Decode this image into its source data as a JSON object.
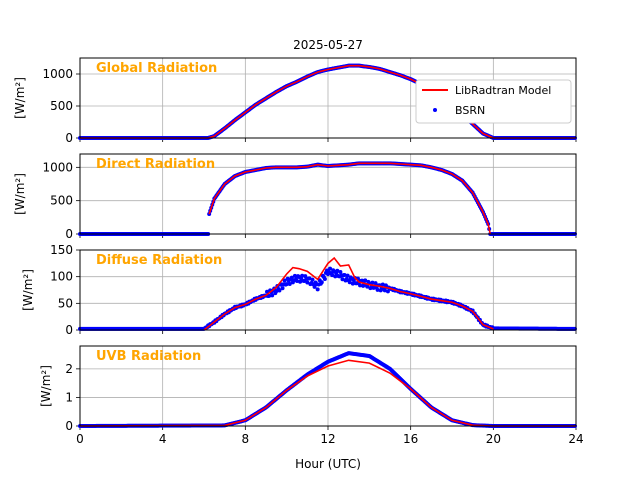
{
  "chart_data": {
    "type": "line",
    "title": "2025-05-27",
    "xlabel": "Hour (UTC)",
    "xlim": [
      0,
      24
    ],
    "xticks": [
      0,
      4,
      8,
      12,
      16,
      20,
      24
    ],
    "grid": true,
    "legend": {
      "placement": "top-right of first panel",
      "entries": [
        "LibRadtran Model",
        "BSRN"
      ]
    },
    "colors": {
      "model": "#ff0000",
      "bsrn": "#0000ff",
      "panel_title": "#ffa500"
    },
    "panels": [
      {
        "title": "Global Radiation",
        "ylabel": "[W/m²]",
        "ylim": [
          0,
          1250
        ],
        "yticks": [
          0,
          500,
          1000
        ],
        "series": [
          {
            "name": "LibRadtran Model",
            "points": [
              [
                0,
                0
              ],
              [
                6.2,
                0
              ],
              [
                6.5,
                30
              ],
              [
                7,
                150
              ],
              [
                7.5,
                280
              ],
              [
                8,
                400
              ],
              [
                8.5,
                520
              ],
              [
                9,
                620
              ],
              [
                9.5,
                720
              ],
              [
                10,
                810
              ],
              [
                10.5,
                880
              ],
              [
                11,
                960
              ],
              [
                11.5,
                1030
              ],
              [
                12,
                1070
              ],
              [
                12.5,
                1100
              ],
              [
                13,
                1130
              ],
              [
                13.5,
                1130
              ],
              [
                14,
                1110
              ],
              [
                14.5,
                1080
              ],
              [
                15,
                1030
              ],
              [
                15.5,
                980
              ],
              [
                16,
                920
              ],
              [
                16.5,
                840
              ],
              [
                17,
                740
              ],
              [
                17.5,
                630
              ],
              [
                18,
                500
              ],
              [
                18.5,
                360
              ],
              [
                19,
                220
              ],
              [
                19.5,
                70
              ],
              [
                20,
                0
              ],
              [
                24,
                0
              ]
            ]
          },
          {
            "name": "BSRN",
            "points": [
              [
                0,
                0
              ],
              [
                6.2,
                0
              ],
              [
                6.5,
                30
              ],
              [
                7,
                150
              ],
              [
                7.5,
                280
              ],
              [
                8,
                400
              ],
              [
                8.5,
                520
              ],
              [
                9,
                620
              ],
              [
                9.5,
                720
              ],
              [
                10,
                810
              ],
              [
                10.5,
                880
              ],
              [
                11,
                960
              ],
              [
                11.5,
                1030
              ],
              [
                12,
                1070
              ],
              [
                12.5,
                1100
              ],
              [
                13,
                1130
              ],
              [
                13.5,
                1130
              ],
              [
                14,
                1110
              ],
              [
                14.5,
                1080
              ],
              [
                15,
                1030
              ],
              [
                15.5,
                980
              ],
              [
                16,
                920
              ],
              [
                16.5,
                840
              ],
              [
                17,
                740
              ],
              [
                17.5,
                630
              ],
              [
                18,
                500
              ],
              [
                18.5,
                360
              ],
              [
                19,
                220
              ],
              [
                19.5,
                70
              ],
              [
                20,
                0
              ],
              [
                24,
                0
              ]
            ]
          }
        ]
      },
      {
        "title": "Direct Radiation",
        "ylabel": "[W/m²]",
        "ylim": [
          0,
          1200
        ],
        "yticks": [
          0,
          500,
          1000
        ],
        "series": [
          {
            "name": "LibRadtran Model",
            "points": [
              [
                6.25,
                300
              ],
              [
                6.5,
                530
              ],
              [
                7,
                750
              ],
              [
                7.5,
                870
              ],
              [
                8,
                930
              ],
              [
                8.5,
                960
              ],
              [
                9,
                990
              ],
              [
                9.5,
                1000
              ],
              [
                10,
                1000
              ],
              [
                10.5,
                1000
              ],
              [
                11,
                1010
              ],
              [
                11.5,
                1040
              ],
              [
                12,
                1020
              ],
              [
                12.5,
                1030
              ],
              [
                13,
                1040
              ],
              [
                13.5,
                1060
              ],
              [
                14,
                1060
              ],
              [
                14.5,
                1060
              ],
              [
                15,
                1060
              ],
              [
                15.5,
                1050
              ],
              [
                16,
                1040
              ],
              [
                16.5,
                1030
              ],
              [
                17,
                1000
              ],
              [
                17.5,
                960
              ],
              [
                18,
                900
              ],
              [
                18.5,
                800
              ],
              [
                19,
                620
              ],
              [
                19.5,
                330
              ],
              [
                19.75,
                150
              ],
              [
                19.85,
                0
              ]
            ]
          },
          {
            "name": "BSRN",
            "points": [
              [
                0,
                0
              ],
              [
                6.2,
                0
              ],
              [
                6.25,
                300
              ],
              [
                6.5,
                530
              ],
              [
                7,
                750
              ],
              [
                7.5,
                870
              ],
              [
                8,
                930
              ],
              [
                8.5,
                960
              ],
              [
                9,
                990
              ],
              [
                9.5,
                1000
              ],
              [
                10,
                1000
              ],
              [
                10.5,
                1000
              ],
              [
                11,
                1010
              ],
              [
                11.5,
                1040
              ],
              [
                12,
                1020
              ],
              [
                12.5,
                1030
              ],
              [
                13,
                1040
              ],
              [
                13.5,
                1060
              ],
              [
                14,
                1060
              ],
              [
                14.5,
                1060
              ],
              [
                15,
                1060
              ],
              [
                15.5,
                1050
              ],
              [
                16,
                1040
              ],
              [
                16.5,
                1030
              ],
              [
                17,
                1000
              ],
              [
                17.5,
                960
              ],
              [
                18,
                900
              ],
              [
                18.5,
                800
              ],
              [
                19,
                620
              ],
              [
                19.5,
                330
              ],
              [
                19.75,
                150
              ],
              [
                19.85,
                0
              ],
              [
                24,
                0
              ]
            ]
          }
        ]
      },
      {
        "title": "Diffuse Radiation",
        "ylabel": "[W/m²]",
        "ylim": [
          0,
          150
        ],
        "yticks": [
          0,
          50,
          100,
          150
        ],
        "series": [
          {
            "name": "LibRadtran Model",
            "points": [
              [
                6,
                0
              ],
              [
                6.5,
                15
              ],
              [
                7,
                30
              ],
              [
                7.5,
                42
              ],
              [
                8,
                48
              ],
              [
                8.5,
                58
              ],
              [
                9,
                65
              ],
              [
                9.5,
                80
              ],
              [
                10,
                105
              ],
              [
                10.3,
                117
              ],
              [
                10.6,
                115
              ],
              [
                11,
                110
              ],
              [
                11.5,
                95
              ],
              [
                12,
                125
              ],
              [
                12.3,
                135
              ],
              [
                12.6,
                120
              ],
              [
                13,
                122
              ],
              [
                13.3,
                98
              ],
              [
                13.5,
                90
              ],
              [
                14,
                85
              ],
              [
                14.5,
                82
              ],
              [
                15,
                78
              ],
              [
                15.5,
                72
              ],
              [
                16,
                68
              ],
              [
                16.5,
                63
              ],
              [
                17,
                58
              ],
              [
                17.5,
                55
              ],
              [
                18,
                52
              ],
              [
                18.5,
                45
              ],
              [
                19,
                35
              ],
              [
                19.5,
                10
              ],
              [
                20,
                2
              ]
            ]
          },
          {
            "name": "BSRN",
            "points": [
              [
                0,
                2
              ],
              [
                6,
                2
              ],
              [
                6.5,
                15
              ],
              [
                7,
                30
              ],
              [
                7.5,
                42
              ],
              [
                8,
                48
              ],
              [
                8.5,
                58
              ],
              [
                9,
                65
              ],
              [
                9.5,
                75
              ],
              [
                10,
                90
              ],
              [
                10.5,
                97
              ],
              [
                11,
                95
              ],
              [
                11.5,
                82
              ],
              [
                12,
                110
              ],
              [
                12.5,
                105
              ],
              [
                13,
                95
              ],
              [
                13.5,
                90
              ],
              [
                14,
                85
              ],
              [
                14.5,
                80
              ],
              [
                15,
                78
              ],
              [
                15.5,
                72
              ],
              [
                16,
                68
              ],
              [
                16.5,
                63
              ],
              [
                17,
                58
              ],
              [
                17.5,
                55
              ],
              [
                18,
                52
              ],
              [
                18.5,
                45
              ],
              [
                19,
                35
              ],
              [
                19.5,
                10
              ],
              [
                20,
                3
              ],
              [
                24,
                2
              ]
            ]
          }
        ]
      },
      {
        "title": "UVB Radiation",
        "ylabel": "[W/m²]",
        "ylim": [
          0,
          2.8
        ],
        "yticks": [
          0,
          1,
          2
        ],
        "series": [
          {
            "name": "LibRadtran Model",
            "points": [
              [
                0,
                0
              ],
              [
                7,
                0.02
              ],
              [
                8,
                0.2
              ],
              [
                9,
                0.65
              ],
              [
                10,
                1.25
              ],
              [
                11,
                1.75
              ],
              [
                12,
                2.1
              ],
              [
                13,
                2.3
              ],
              [
                14,
                2.2
              ],
              [
                15,
                1.85
              ],
              [
                16,
                1.3
              ],
              [
                17,
                0.65
              ],
              [
                18,
                0.2
              ],
              [
                19,
                0.03
              ],
              [
                20,
                0
              ],
              [
                24,
                0
              ]
            ]
          },
          {
            "name": "BSRN",
            "points": [
              [
                0,
                0
              ],
              [
                7,
                0.02
              ],
              [
                8,
                0.2
              ],
              [
                9,
                0.65
              ],
              [
                10,
                1.25
              ],
              [
                11,
                1.8
              ],
              [
                12,
                2.25
              ],
              [
                13,
                2.55
              ],
              [
                14,
                2.45
              ],
              [
                15,
                2.0
              ],
              [
                16,
                1.3
              ],
              [
                17,
                0.65
              ],
              [
                18,
                0.2
              ],
              [
                19,
                0.03
              ],
              [
                20,
                0
              ],
              [
                24,
                0
              ]
            ]
          }
        ]
      }
    ]
  }
}
